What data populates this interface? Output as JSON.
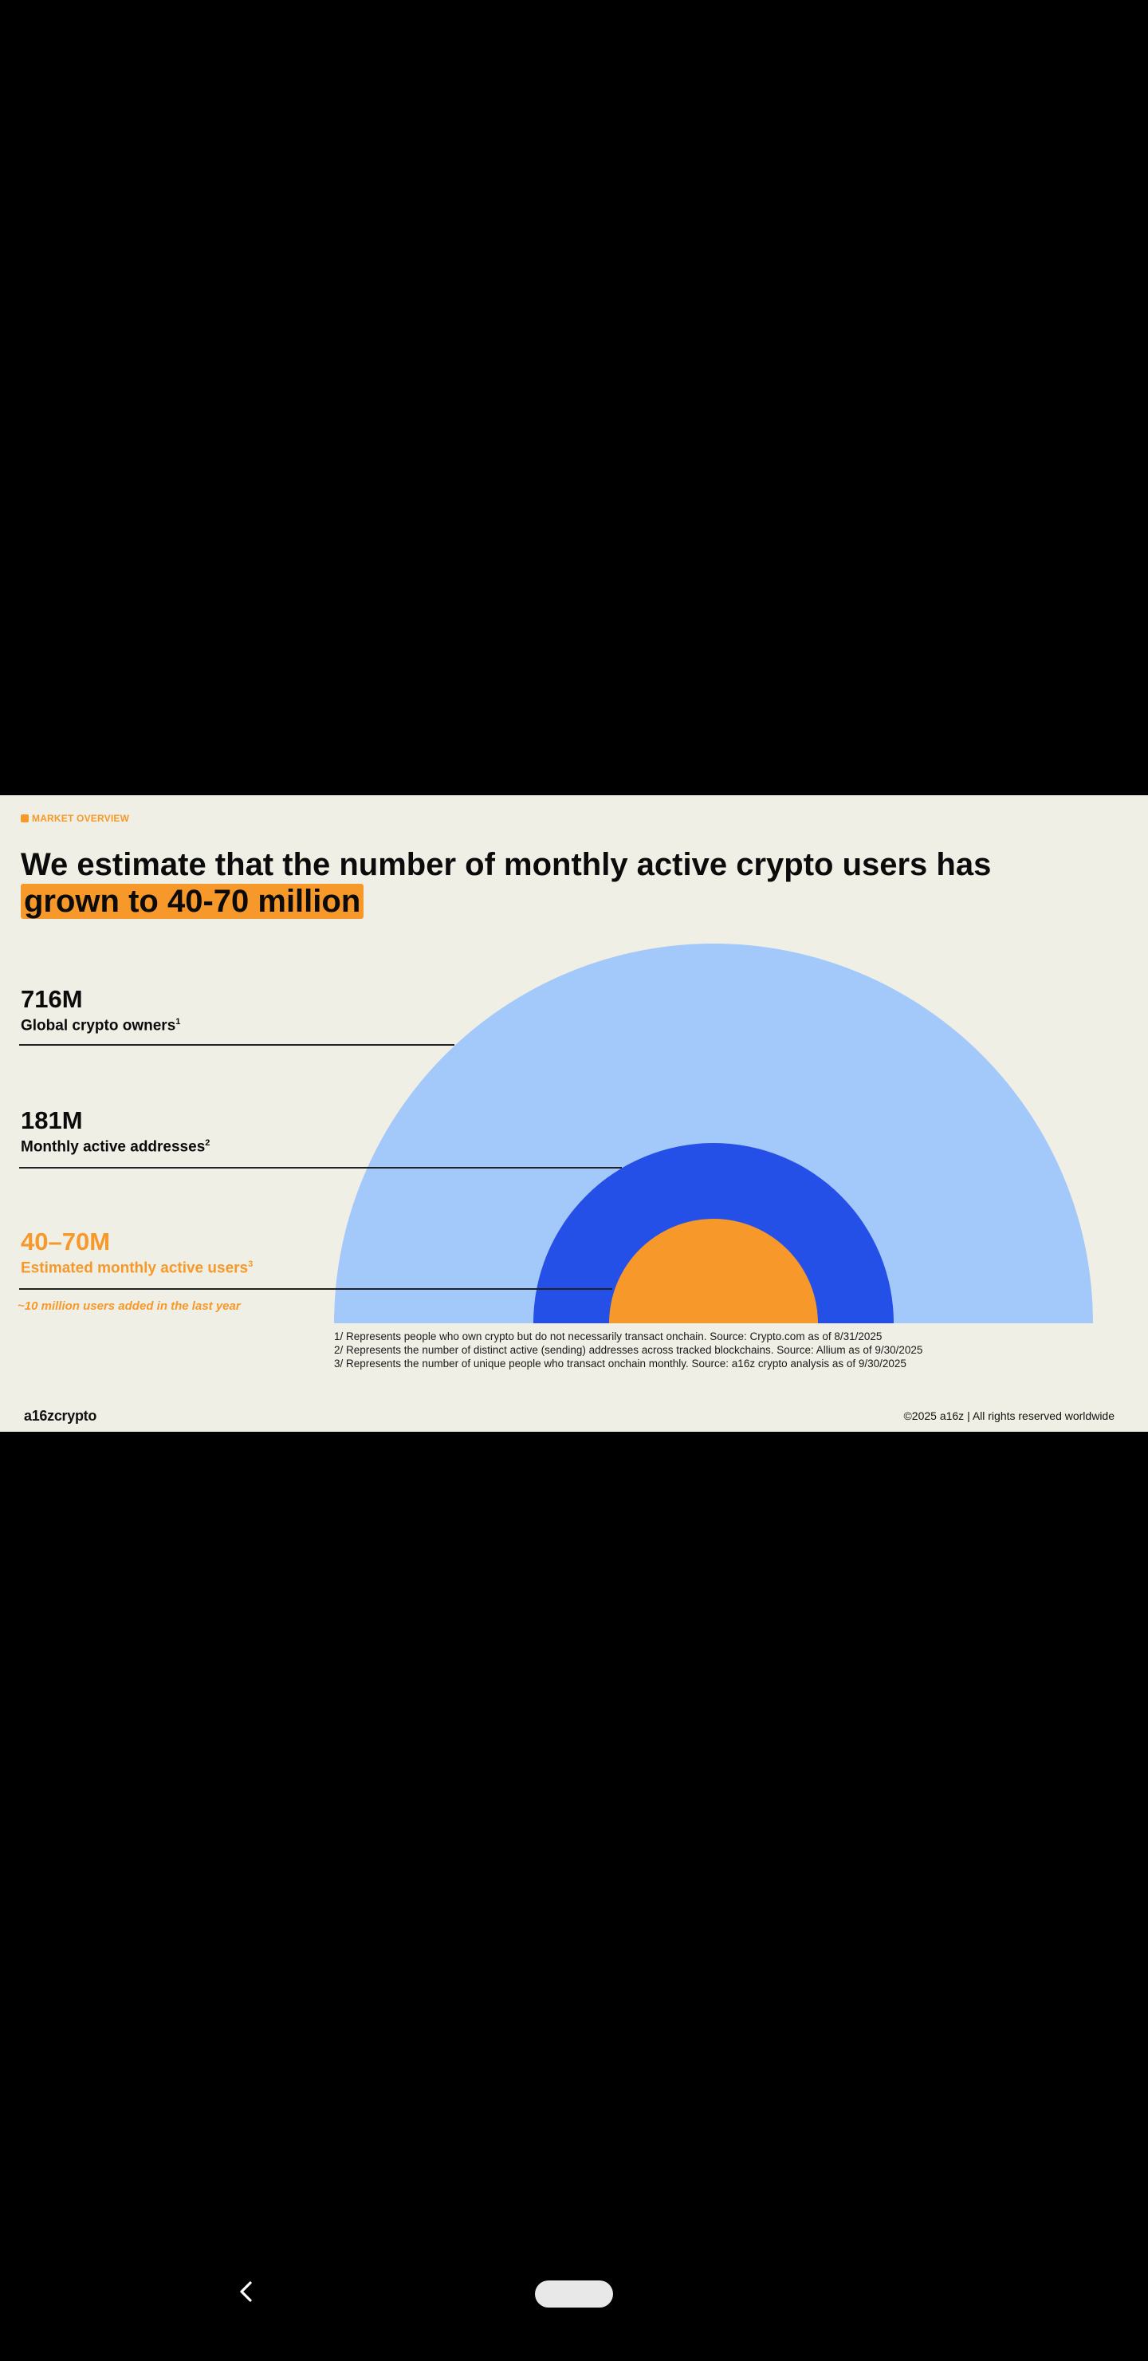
{
  "slide": {
    "section_label": "MARKET OVERVIEW",
    "headline_prefix": "We estimate that the number of monthly active crypto users has ",
    "headline_highlight": "grown to 40-70 million",
    "stats": [
      {
        "value": "716M",
        "label": "Global crypto owners",
        "footnote": "1"
      },
      {
        "value": "181M",
        "label": "Monthly active addresses",
        "footnote": "2"
      },
      {
        "value": "40–70M",
        "label": "Estimated monthly active users",
        "footnote": "3"
      }
    ],
    "growth_note": "~10 million users added in the last year",
    "footnotes": [
      "1/ Represents people who own crypto but do not necessarily transact onchain. Source: Crypto.com as of 8/31/2025",
      "2/ Represents the number of distinct active (sending) addresses across tracked blockchains. Source: Allium as of 9/30/2025",
      "3/ Represents the number of unique people who transact onchain monthly. Source: a16z crypto analysis as of 9/30/2025"
    ],
    "logo": "a16zcrypto",
    "copyright": "©2025 a16z | All rights reserved worldwide"
  },
  "colors": {
    "background": "#f0efe5",
    "owners": "#a3c8fa",
    "addresses": "#2550e8",
    "users": "#f6992a"
  },
  "chart_data": {
    "type": "nested-semicircle",
    "title": "We estimate that the number of monthly active crypto users has grown to 40-70 million",
    "series": [
      {
        "name": "Global crypto owners",
        "value": 716,
        "unit": "M"
      },
      {
        "name": "Monthly active addresses",
        "value": 181,
        "unit": "M"
      },
      {
        "name": "Estimated monthly active users",
        "value": 55,
        "range": [
          40,
          70
        ],
        "unit": "M"
      }
    ]
  },
  "system_nav": {
    "back_icon": "chevron-left-icon",
    "home_icon": "home-pill-icon"
  }
}
